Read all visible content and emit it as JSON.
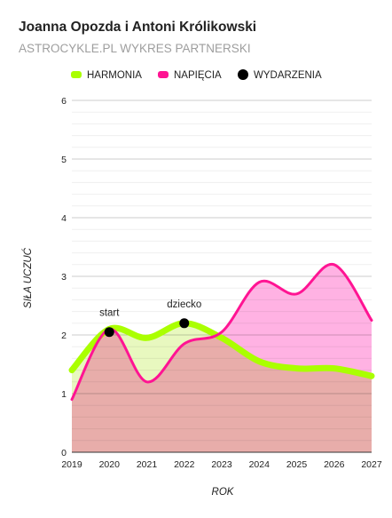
{
  "chart_data": {
    "type": "area",
    "title": "Joanna Opozda i Antoni Królikowski",
    "subtitle": "ASTROCYKLE.PL WYKRES PARTNERSKI",
    "xlabel": "ROK",
    "ylabel": "SIŁA UCZUĆ",
    "x": [
      2019,
      2020,
      2021,
      2022,
      2023,
      2024,
      2025,
      2026,
      2027
    ],
    "xlim": [
      2019,
      2027
    ],
    "ylim": [
      0,
      6
    ],
    "yticks": [
      0,
      1,
      2,
      3,
      4,
      5,
      6
    ],
    "grid": true,
    "legend_position": "top",
    "series": [
      {
        "name": "HARMONIA",
        "color": "#aaff00",
        "fill": "#e5f7b8",
        "values": [
          1.4,
          2.1,
          1.95,
          2.2,
          1.95,
          1.55,
          1.43,
          1.43,
          1.3
        ]
      },
      {
        "name": "NAPIĘCIA",
        "color": "#ff1493",
        "fill": "#ffaae0",
        "values": [
          0.9,
          2.1,
          1.2,
          1.85,
          2.05,
          2.9,
          2.7,
          3.2,
          2.25
        ]
      }
    ],
    "events": {
      "name": "WYDARZENIA",
      "color": "#000000",
      "points": [
        {
          "x": 2020.0,
          "y": 2.05,
          "label": "start"
        },
        {
          "x": 2022.0,
          "y": 2.2,
          "label": "dziecko"
        }
      ]
    }
  }
}
